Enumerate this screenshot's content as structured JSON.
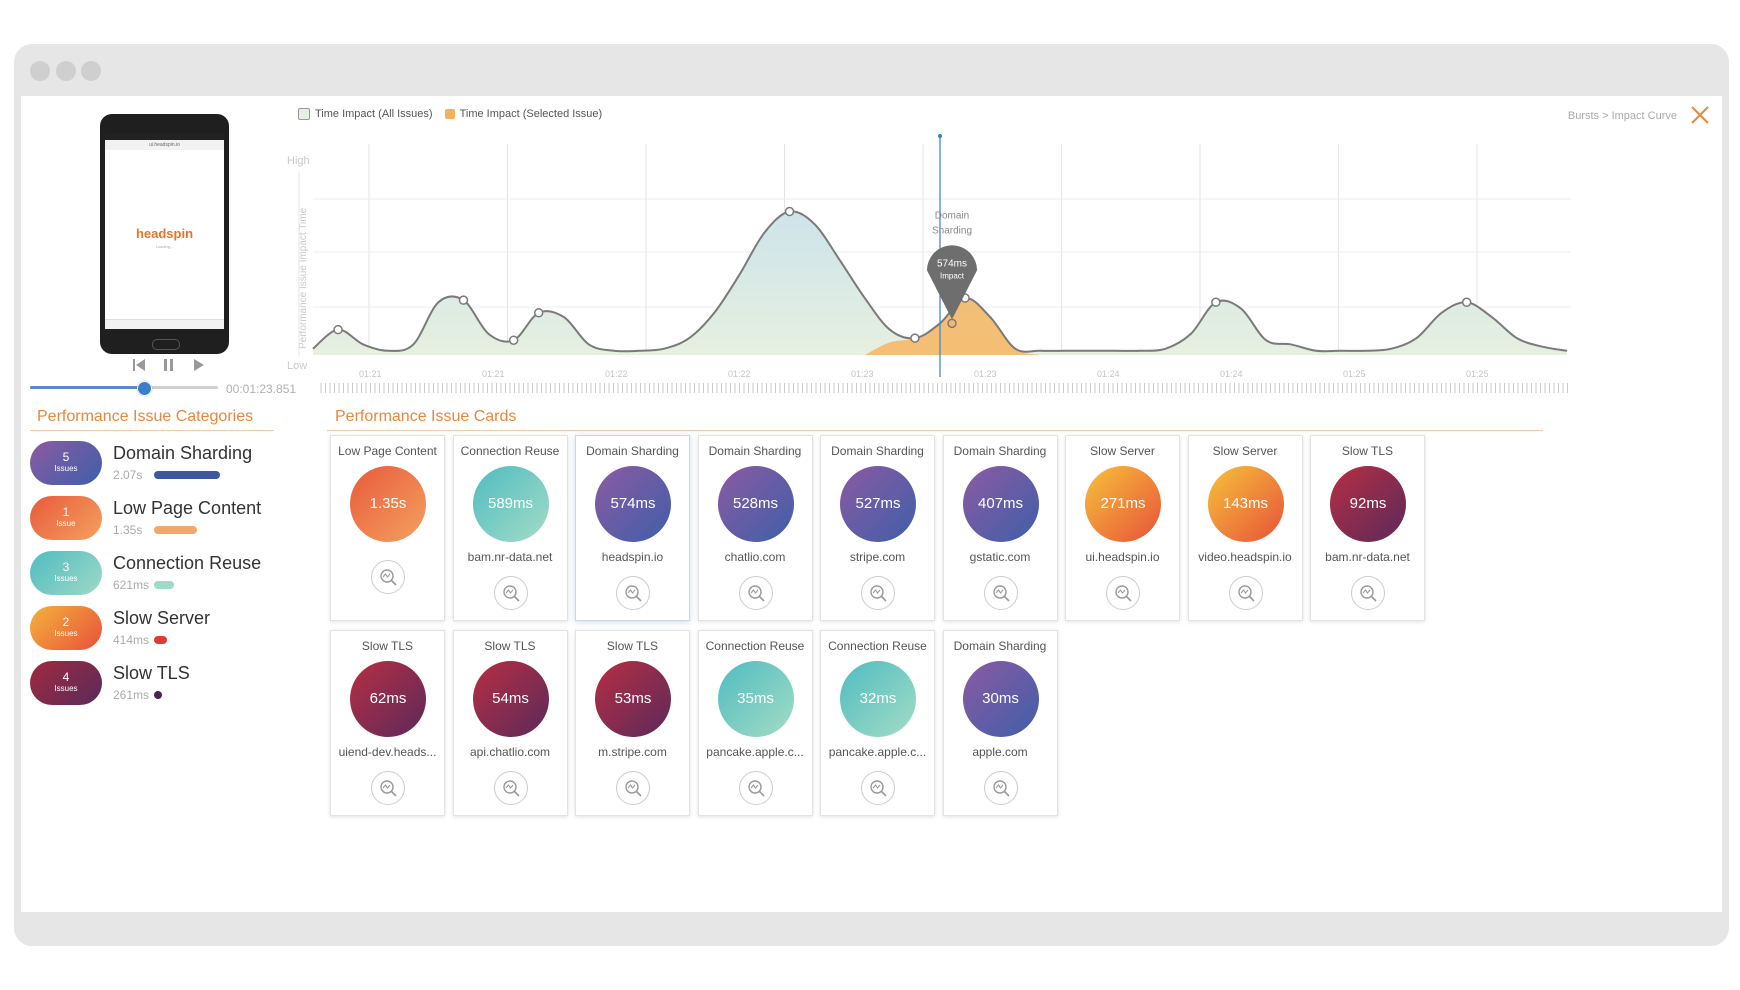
{
  "player": {
    "brand": "headspin",
    "loading_text": "Loading...",
    "url_text": "ui.headspin.io",
    "timestamp": "00:01:23.851",
    "progress": 0.6
  },
  "chart": {
    "legend_all": "Time Impact (All Issues)",
    "legend_selected": "Time Impact (Selected Issue)",
    "breadcrumb": "Bursts > Impact Curve",
    "y_high": "High",
    "y_low": "Low",
    "y_label": "Performance Issue Impact Time",
    "marker_title": "Domain Sharding",
    "marker_value": "574ms",
    "marker_sub": "Impact",
    "time_labels": [
      "01:21",
      "01:21",
      "01:22",
      "01:22",
      "01:23",
      "01:23",
      "01:24",
      "01:24",
      "01:25",
      "01:25"
    ]
  },
  "chart_data": {
    "type": "area",
    "series": [
      {
        "name": "Time Impact (All Issues)",
        "x": [
          0,
          2,
          4,
          6,
          8,
          10,
          12,
          14,
          16,
          18,
          20,
          22,
          24,
          26,
          28,
          30,
          32,
          34,
          36,
          38,
          40,
          42,
          44,
          46,
          48,
          50,
          52,
          54,
          56,
          58,
          60,
          62,
          64,
          66,
          68,
          70,
          72,
          74,
          76,
          78,
          80,
          82,
          84,
          86,
          88,
          90,
          92,
          94,
          96,
          98,
          100
        ],
        "values": [
          0.03,
          0.12,
          0.05,
          0.02,
          0.05,
          0.25,
          0.26,
          0.1,
          0.07,
          0.2,
          0.18,
          0.05,
          0.02,
          0.02,
          0.03,
          0.08,
          0.2,
          0.38,
          0.58,
          0.68,
          0.62,
          0.45,
          0.27,
          0.12,
          0.08,
          0.15,
          0.27,
          0.18,
          0.03,
          0.02,
          0.02,
          0.02,
          0.02,
          0.02,
          0.03,
          0.1,
          0.25,
          0.22,
          0.07,
          0.05,
          0.02,
          0.02,
          0.02,
          0.03,
          0.08,
          0.2,
          0.25,
          0.18,
          0.08,
          0.04,
          0.02
        ]
      },
      {
        "name": "Time Impact (Selected Issue)",
        "x": [
          44,
          46,
          48,
          50,
          52,
          54,
          56,
          58
        ],
        "values": [
          0.0,
          0.06,
          0.08,
          0.15,
          0.27,
          0.18,
          0.03,
          0.0
        ]
      }
    ],
    "ylim": [
      0,
      1
    ],
    "selected_x": 50
  },
  "categories_title": "Performance Issue Categories",
  "categories": [
    {
      "count": "5",
      "unit": "Issues",
      "name": "Domain Sharding",
      "value": "2.07s",
      "ratio": 1.0,
      "color1": "#8b5aa3",
      "color2": "#3f5fa8",
      "bar": "#3b58a0"
    },
    {
      "count": "1",
      "unit": "Issue",
      "name": "Low Page Content",
      "value": "1.35s",
      "ratio": 0.65,
      "color1": "#e85a3c",
      "color2": "#f4a15f",
      "bar": "#f2a86a"
    },
    {
      "count": "3",
      "unit": "Issues",
      "name": "Connection Reuse",
      "value": "621ms",
      "ratio": 0.3,
      "color1": "#4fbcc0",
      "color2": "#9fd9c7",
      "bar": "#9fd9c7"
    },
    {
      "count": "2",
      "unit": "Issues",
      "name": "Slow Server",
      "value": "414ms",
      "ratio": 0.2,
      "color1": "#f4b23c",
      "color2": "#e8513a",
      "bar": "#e03a34"
    },
    {
      "count": "4",
      "unit": "Issues",
      "name": "Slow TLS",
      "value": "261ms",
      "ratio": 0.12,
      "color1": "#a02a40",
      "color2": "#5a2a5a",
      "bar": "#4a2350"
    }
  ],
  "cards_title": "Performance Issue Cards",
  "cards": [
    {
      "title": "Low Page Content",
      "value": "1.35s",
      "host": "",
      "type": "lpc"
    },
    {
      "title": "Connection Reuse",
      "value": "589ms",
      "host": "bam.nr-data.net",
      "type": "cr"
    },
    {
      "title": "Domain Sharding",
      "value": "574ms",
      "host": "headspin.io",
      "type": "ds",
      "selected": true
    },
    {
      "title": "Domain Sharding",
      "value": "528ms",
      "host": "chatlio.com",
      "type": "ds"
    },
    {
      "title": "Domain Sharding",
      "value": "527ms",
      "host": "stripe.com",
      "type": "ds"
    },
    {
      "title": "Domain Sharding",
      "value": "407ms",
      "host": "gstatic.com",
      "type": "ds"
    },
    {
      "title": "Slow Server",
      "value": "271ms",
      "host": "ui.headspin.io",
      "type": "ss"
    },
    {
      "title": "Slow Server",
      "value": "143ms",
      "host": "video.headspin.io",
      "type": "ss"
    },
    {
      "title": "Slow TLS",
      "value": "92ms",
      "host": "bam.nr-data.net",
      "type": "tls"
    },
    {
      "title": "Slow TLS",
      "value": "62ms",
      "host": "uiend-dev.heads...",
      "type": "tls"
    },
    {
      "title": "Slow TLS",
      "value": "54ms",
      "host": "api.chatlio.com",
      "type": "tls"
    },
    {
      "title": "Slow TLS",
      "value": "53ms",
      "host": "m.stripe.com",
      "type": "tls"
    },
    {
      "title": "Connection Reuse",
      "value": "35ms",
      "host": "pancake.apple.c...",
      "type": "cr"
    },
    {
      "title": "Connection Reuse",
      "value": "32ms",
      "host": "pancake.apple.c...",
      "type": "cr"
    },
    {
      "title": "Domain Sharding",
      "value": "30ms",
      "host": "apple.com",
      "type": "ds"
    }
  ],
  "colors": {
    "ds": [
      "#8b5aa3",
      "#3f5fa8"
    ],
    "lpc": [
      "#e85a3c",
      "#f4a15f"
    ],
    "cr": [
      "#4fbcc0",
      "#a4dcc6"
    ],
    "ss": [
      "#f6c23a",
      "#e8513a"
    ],
    "tls": [
      "#b82e43",
      "#5a2a5a"
    ],
    "accent": "#e8873d"
  }
}
